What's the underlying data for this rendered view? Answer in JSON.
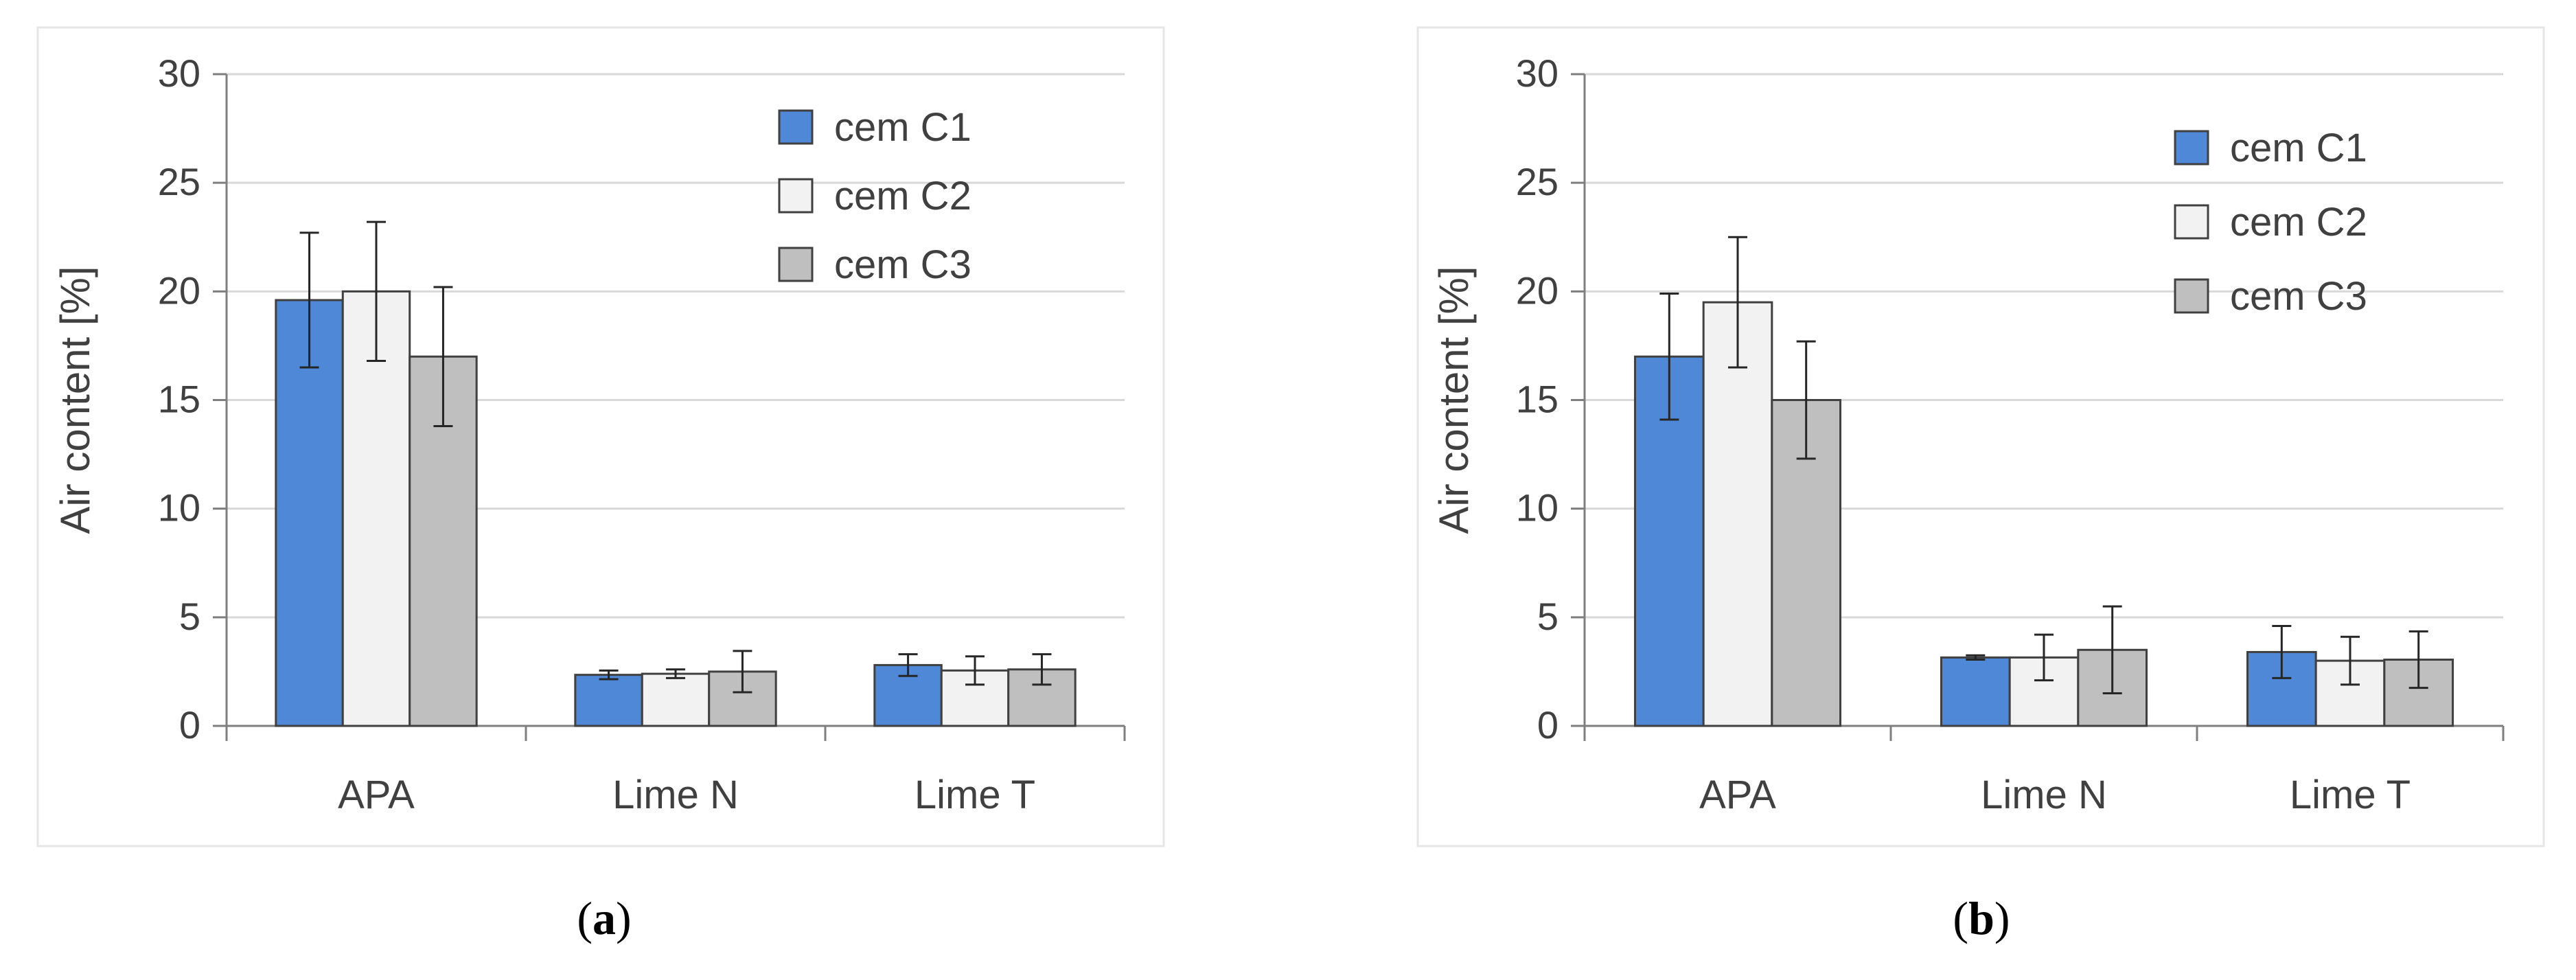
{
  "chart_data": [
    {
      "type": "bar",
      "panel_label": "a",
      "ylabel": "Air content [%]",
      "ylim": [
        0,
        30
      ],
      "yticks": [
        0,
        5,
        10,
        15,
        20,
        25,
        30
      ],
      "categories": [
        "APA",
        "Lime N",
        "Lime T"
      ],
      "legend_position": "top-right",
      "grid": true,
      "series": [
        {
          "name": "cem C1",
          "color": "#4f88d6",
          "values": [
            19.6,
            2.35,
            2.8
          ],
          "errors": [
            3.1,
            0.2,
            0.5
          ]
        },
        {
          "name": "cem C2",
          "color": "#f2f2f2",
          "values": [
            20.0,
            2.4,
            2.55
          ],
          "errors": [
            3.2,
            0.2,
            0.65
          ]
        },
        {
          "name": "cem C3",
          "color": "#bfbfbf",
          "values": [
            17.0,
            2.5,
            2.6
          ],
          "errors": [
            3.2,
            0.95,
            0.7
          ]
        }
      ]
    },
    {
      "type": "bar",
      "panel_label": "b",
      "ylabel": "Air content [%]",
      "ylim": [
        0,
        30
      ],
      "yticks": [
        0,
        5,
        10,
        15,
        20,
        25,
        30
      ],
      "categories": [
        "APA",
        "Lime N",
        "Lime T"
      ],
      "legend_position": "top-right",
      "grid": true,
      "series": [
        {
          "name": "cem C1",
          "color": "#4f88d6",
          "values": [
            17.0,
            3.15,
            3.4
          ],
          "errors": [
            2.9,
            0.1,
            1.2
          ]
        },
        {
          "name": "cem C2",
          "color": "#f2f2f2",
          "values": [
            19.5,
            3.15,
            3.0
          ],
          "errors": [
            3.0,
            1.05,
            1.1
          ]
        },
        {
          "name": "cem C3",
          "color": "#bfbfbf",
          "values": [
            15.0,
            3.5,
            3.05
          ],
          "errors": [
            2.7,
            2.0,
            1.3
          ]
        }
      ]
    }
  ]
}
